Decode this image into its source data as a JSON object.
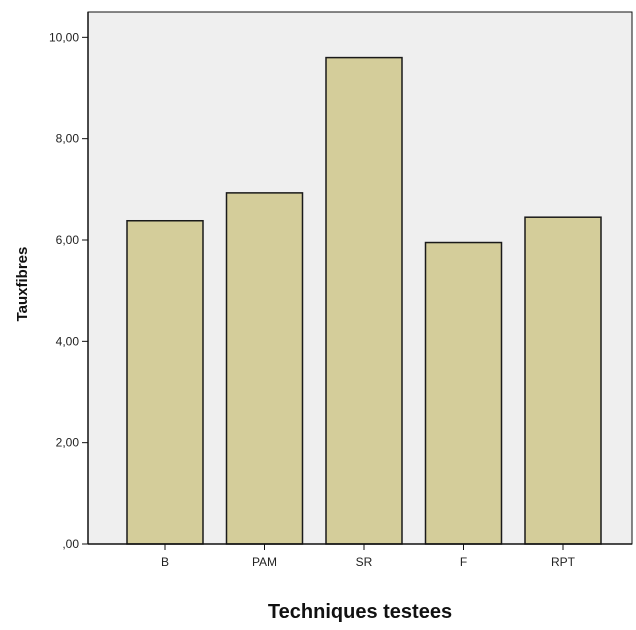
{
  "chart_data": {
    "type": "bar",
    "title": "",
    "xlabel": "Techniques testees",
    "ylabel": "Tauxfibres",
    "categories": [
      "B",
      "PAM",
      "SR",
      "F",
      "RPT"
    ],
    "values": [
      6.38,
      6.93,
      9.6,
      5.95,
      6.45
    ],
    "ylim": [
      0,
      10.5
    ],
    "yticks": [
      0,
      2,
      4,
      6,
      8,
      10
    ],
    "ytick_labels": [
      ",00",
      "2,00",
      "4,00",
      "6,00",
      "8,00",
      "10,00"
    ],
    "grid": false,
    "legend": "none",
    "colors": {
      "bar_fill": "#d4cd9a",
      "bar_stroke": "#1a1a1a",
      "plot_background": "#efefef",
      "axis": "#111111"
    }
  }
}
